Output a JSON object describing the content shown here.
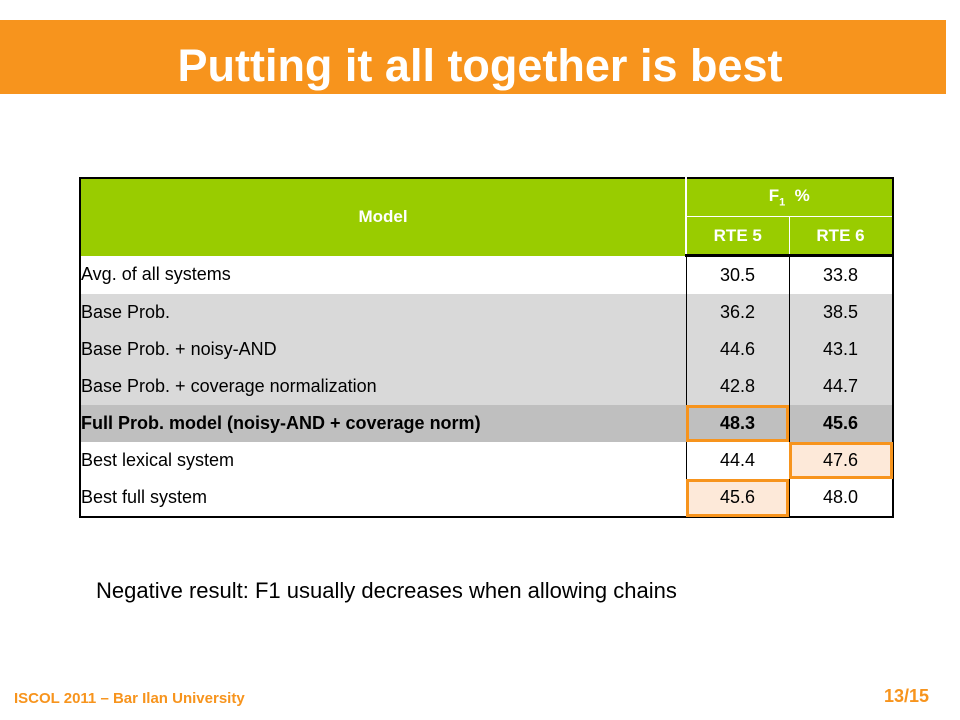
{
  "slide": {
    "title": "Putting it all together is best",
    "note": "Negative result: F1 usually decreases when allowing chains",
    "footer_left": "ISCOL 2011 – Bar Ilan University",
    "page_number": "13/15",
    "accent_color": "#f7941d",
    "header_color": "#99cc00"
  },
  "table": {
    "model_header": "Model",
    "metric_header": "F",
    "metric_sub": "1",
    "metric_unit": "%",
    "columns": [
      "RTE 5",
      "RTE 6"
    ],
    "rows": [
      {
        "model": "Avg. of all systems",
        "values": [
          "30.5",
          "33.8"
        ]
      },
      {
        "model": "Base Prob.",
        "values": [
          "36.2",
          "38.5"
        ]
      },
      {
        "model": "Base Prob.  + noisy-AND",
        "values": [
          "44.6",
          "43.1"
        ]
      },
      {
        "model": "Base Prob.  + coverage normalization",
        "values": [
          "42.8",
          "44.7"
        ]
      },
      {
        "model": "Full Prob. model  (noisy-AND + coverage norm)",
        "values": [
          "48.3",
          "45.6"
        ]
      },
      {
        "model": "Best lexical system",
        "values": [
          "44.4",
          "47.6"
        ]
      },
      {
        "model": "Best full system",
        "values": [
          "45.6",
          "48.0"
        ]
      }
    ]
  }
}
